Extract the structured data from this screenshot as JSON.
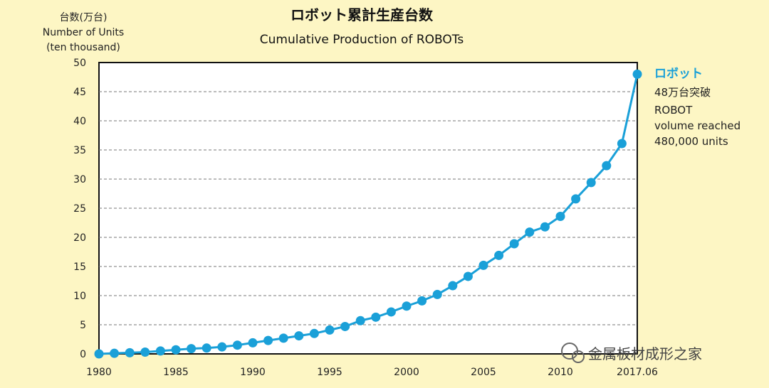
{
  "chart_data": {
    "type": "line",
    "title": "ロボット累計生産台数",
    "subtitle": "Cumulative Production of ROBOTs",
    "ylabel_lines": [
      "台数(万台)",
      "Number of Units",
      "(ten thousand)"
    ],
    "ylim": [
      0,
      50
    ],
    "y_ticks": [
      "0",
      "5",
      "10",
      "15",
      "20",
      "25",
      "30",
      "35",
      "40",
      "45",
      "50"
    ],
    "x_tick_labels": [
      {
        "x": 1980,
        "label": "1980"
      },
      {
        "x": 1985,
        "label": "1985"
      },
      {
        "x": 1990,
        "label": "1990"
      },
      {
        "x": 1995,
        "label": "1995"
      },
      {
        "x": 2000,
        "label": "2000"
      },
      {
        "x": 2005,
        "label": "2005"
      },
      {
        "x": 2010,
        "label": "2010"
      },
      {
        "x": 2015,
        "label": "2017.06"
      }
    ],
    "xlim": [
      1980,
      2015
    ],
    "grid": true,
    "series": [
      {
        "x": [
          1980,
          1981,
          1982,
          1983,
          1984,
          1985,
          1986,
          1987,
          1988,
          1989,
          1990,
          1991,
          1992,
          1993,
          1994,
          1995,
          1996,
          1997,
          1998,
          1999,
          2000,
          2001,
          2002,
          2003,
          2004,
          2005,
          2006,
          2007,
          2008,
          2009,
          2010,
          2011,
          2012,
          2013,
          2014,
          2015
        ],
        "values": [
          0,
          0.1,
          0.2,
          0.3,
          0.5,
          0.7,
          0.9,
          1.0,
          1.2,
          1.5,
          1.9,
          2.3,
          2.7,
          3.1,
          3.5,
          4.1,
          4.7,
          5.7,
          6.3,
          7.2,
          8.2,
          9.1,
          10.2,
          11.7,
          13.3,
          15.2,
          16.9,
          18.9,
          20.9,
          21.8,
          23.6,
          26.6,
          29.4,
          32.3,
          36.1,
          48.0
        ]
      }
    ],
    "annotation": {
      "heading": "ロボット",
      "lines": [
        "48万台突破",
        "ROBOT",
        "volume reached",
        "480,000 units"
      ]
    },
    "watermark": "金属板材成形之家",
    "colors": {
      "series": "#1aa0d8",
      "background": "#fdf6c4",
      "plot": "#ffffff"
    }
  }
}
